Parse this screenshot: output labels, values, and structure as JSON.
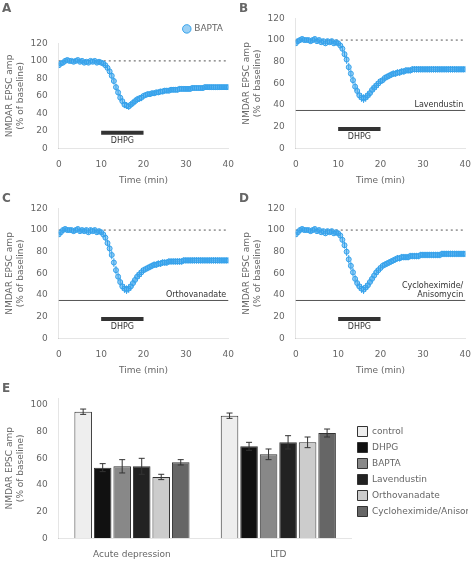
{
  "chart_data": [
    {
      "type": "scatter",
      "title": "A",
      "xlabel": "Time (min)",
      "ylabel": "NMDAR EPSC amp\n(% of baseline)",
      "x": [
        0,
        0.5,
        1,
        1.5,
        2,
        2.5,
        3,
        3.5,
        4,
        4.5,
        5,
        5.5,
        6,
        6.5,
        7,
        7.5,
        8,
        8.5,
        9,
        9.5,
        10,
        10.5,
        11,
        11.5,
        12,
        12.5,
        13,
        13.5,
        14,
        14.5,
        15,
        15.5,
        16,
        16.5,
        17,
        17.5,
        18,
        18.5,
        19,
        19.5,
        20,
        20.5,
        21,
        21.5,
        22,
        22.5,
        23,
        23.5,
        24,
        24.5,
        25,
        25.5,
        26,
        26.5,
        27,
        27.5,
        28,
        28.5,
        29,
        29.5,
        30,
        30.5,
        31,
        31.5,
        32,
        32.5,
        33,
        33.5,
        34,
        34.5,
        35,
        35.5,
        36,
        36.5,
        37,
        37.5,
        38,
        38.5,
        39,
        39.5,
        40
      ],
      "series": [
        {
          "name": "BAPTA",
          "marker": "circle",
          "values": [
            95,
            97,
            98,
            100,
            101,
            100,
            100,
            99,
            100,
            101,
            99,
            100,
            98,
            99,
            98,
            100,
            99,
            100,
            98,
            99,
            98,
            97,
            95,
            92,
            88,
            83,
            77,
            70,
            64,
            58,
            54,
            50,
            49,
            48,
            50,
            52,
            54,
            56,
            57,
            58,
            60,
            61,
            62,
            62,
            63,
            63,
            64,
            64,
            65,
            65,
            66,
            66,
            66,
            67,
            67,
            67,
            67,
            68,
            68,
            68,
            68,
            68,
            68,
            69,
            69,
            69,
            69,
            69,
            69,
            70,
            70,
            70,
            70,
            70,
            70,
            70,
            70,
            70,
            70,
            70,
            70
          ],
          "errors": [
            2,
            2,
            2,
            2,
            2,
            2,
            2,
            2,
            2,
            2,
            2,
            2,
            2,
            2,
            2,
            2,
            2,
            2,
            2,
            2,
            2,
            3,
            3,
            3,
            4,
            4,
            4,
            4,
            4,
            4,
            4,
            4,
            4,
            4,
            4,
            4,
            4,
            4,
            4,
            4,
            3,
            3,
            3,
            3,
            3,
            3,
            3,
            3,
            3,
            3,
            3,
            3,
            3,
            3,
            3,
            3,
            3,
            3,
            3,
            3,
            3,
            3,
            3,
            3,
            3,
            3,
            3,
            3,
            3,
            3,
            3,
            3,
            3,
            3,
            3,
            3,
            3,
            3,
            3,
            3,
            3
          ]
        }
      ],
      "legend": "upper right",
      "annotations": [
        {
          "type": "hline",
          "y": 100,
          "line_style": "dotted"
        },
        {
          "type": "span",
          "x": [
            10,
            20
          ],
          "y": 18,
          "text": "DHPG"
        }
      ],
      "xlim": [
        0,
        40
      ],
      "xticks": [
        0,
        10,
        20,
        30,
        40
      ],
      "ylim": [
        0,
        120
      ],
      "yticks": [
        0,
        20,
        40,
        60,
        80,
        100,
        120
      ],
      "grid": false
    },
    {
      "type": "scatter",
      "title": "B",
      "xlabel": "Time (min)",
      "ylabel": "NMDAR EPSC amp\n(% of baseline)",
      "x": [
        0,
        0.5,
        1,
        1.5,
        2,
        2.5,
        3,
        3.5,
        4,
        4.5,
        5,
        5.5,
        6,
        6.5,
        7,
        7.5,
        8,
        8.5,
        9,
        9.5,
        10,
        10.5,
        11,
        11.5,
        12,
        12.5,
        13,
        13.5,
        14,
        14.5,
        15,
        15.5,
        16,
        16.5,
        17,
        17.5,
        18,
        18.5,
        19,
        19.5,
        20,
        20.5,
        21,
        21.5,
        22,
        22.5,
        23,
        23.5,
        24,
        24.5,
        25,
        25.5,
        26,
        26.5,
        27,
        27.5,
        28,
        28.5,
        29,
        29.5,
        30,
        30.5,
        31,
        31.5,
        32,
        32.5,
        33,
        33.5,
        34,
        34.5,
        35,
        35.5,
        36,
        36.5,
        37,
        37.5,
        38,
        38.5,
        39,
        39.5,
        40
      ],
      "series": [
        {
          "marker": "circle",
          "values": [
            97,
            99,
            100,
            101,
            100,
            100,
            100,
            99,
            100,
            101,
            99,
            100,
            98,
            99,
            97,
            99,
            98,
            99,
            97,
            98,
            97,
            95,
            92,
            87,
            82,
            75,
            69,
            63,
            57,
            53,
            49,
            47,
            46,
            47,
            49,
            51,
            54,
            56,
            58,
            60,
            62,
            63,
            65,
            66,
            67,
            68,
            69,
            69,
            70,
            70,
            71,
            71,
            72,
            72,
            72,
            73,
            73,
            73,
            73,
            73,
            73,
            73,
            73,
            73,
            73,
            73,
            73,
            73,
            73,
            73,
            73,
            73,
            73,
            73,
            73,
            73,
            73,
            73,
            73,
            73,
            73
          ],
          "errors": [
            2,
            2,
            2,
            2,
            2,
            2,
            2,
            2,
            2,
            2,
            2,
            2,
            2,
            2,
            2,
            2,
            2,
            2,
            2,
            2,
            2,
            3,
            3,
            3,
            4,
            4,
            4,
            4,
            4,
            4,
            4,
            4,
            4,
            4,
            4,
            4,
            4,
            4,
            4,
            4,
            3,
            3,
            3,
            3,
            3,
            3,
            3,
            3,
            3,
            3,
            3,
            3,
            3,
            3,
            3,
            3,
            3,
            3,
            3,
            3,
            3,
            3,
            3,
            3,
            3,
            3,
            3,
            3,
            3,
            3,
            3,
            3,
            3,
            3,
            3,
            3,
            3,
            3,
            3,
            3,
            3
          ]
        }
      ],
      "annotations": [
        {
          "type": "hline",
          "y": 100,
          "line_style": "dotted"
        },
        {
          "type": "hline",
          "y": 35,
          "line_style": "solid",
          "text": "Lavendustin"
        },
        {
          "type": "span",
          "x": [
            10,
            20
          ],
          "y": 18,
          "text": "DHPG"
        }
      ],
      "xlim": [
        0,
        40
      ],
      "xticks": [
        0,
        10,
        20,
        30,
        40
      ],
      "ylim": [
        0,
        120
      ],
      "yticks": [
        0,
        20,
        40,
        60,
        80,
        100,
        120
      ],
      "grid": false
    },
    {
      "type": "scatter",
      "title": "C",
      "xlabel": "Time (min)",
      "ylabel": "NMDAR EPSC amp\n(% of baseline)",
      "x": [
        0,
        0.5,
        1,
        1.5,
        2,
        2.5,
        3,
        3.5,
        4,
        4.5,
        5,
        5.5,
        6,
        6.5,
        7,
        7.5,
        8,
        8.5,
        9,
        9.5,
        10,
        10.5,
        11,
        11.5,
        12,
        12.5,
        13,
        13.5,
        14,
        14.5,
        15,
        15.5,
        16,
        16.5,
        17,
        17.5,
        18,
        18.5,
        19,
        19.5,
        20,
        20.5,
        21,
        21.5,
        22,
        22.5,
        23,
        23.5,
        24,
        24.5,
        25,
        25.5,
        26,
        26.5,
        27,
        27.5,
        28,
        28.5,
        29,
        29.5,
        30,
        30.5,
        31,
        31.5,
        32,
        32.5,
        33,
        33.5,
        34,
        34.5,
        35,
        35.5,
        36,
        36.5,
        37,
        37.5,
        38,
        38.5,
        39,
        39.5,
        40
      ],
      "series": [
        {
          "marker": "circle",
          "values": [
            96,
            98,
            100,
            101,
            100,
            100,
            100,
            99,
            100,
            101,
            99,
            100,
            99,
            100,
            98,
            100,
            99,
            100,
            98,
            99,
            98,
            96,
            93,
            88,
            83,
            77,
            70,
            63,
            57,
            52,
            48,
            46,
            45,
            46,
            48,
            51,
            54,
            57,
            59,
            61,
            63,
            64,
            65,
            66,
            67,
            68,
            68,
            69,
            69,
            70,
            70,
            70,
            71,
            71,
            71,
            71,
            71,
            71,
            71,
            72,
            72,
            72,
            72,
            72,
            72,
            72,
            72,
            72,
            72,
            72,
            72,
            72,
            72,
            72,
            72,
            72,
            72,
            72,
            72,
            72,
            72
          ],
          "errors": [
            2,
            2,
            2,
            2,
            2,
            2,
            2,
            2,
            2,
            2,
            2,
            2,
            2,
            2,
            2,
            2,
            2,
            2,
            2,
            2,
            2,
            3,
            3,
            3,
            4,
            4,
            4,
            4,
            4,
            4,
            4,
            4,
            4,
            4,
            4,
            4,
            4,
            4,
            4,
            4,
            3,
            3,
            3,
            3,
            3,
            3,
            3,
            3,
            3,
            3,
            3,
            3,
            3,
            3,
            3,
            3,
            3,
            3,
            3,
            3,
            3,
            3,
            3,
            3,
            3,
            3,
            3,
            3,
            3,
            3,
            3,
            3,
            3,
            3,
            3,
            3,
            3,
            3,
            3,
            3,
            3
          ]
        }
      ],
      "annotations": [
        {
          "type": "hline",
          "y": 100,
          "line_style": "dotted"
        },
        {
          "type": "hline",
          "y": 35,
          "line_style": "solid",
          "text": "Orthovanadate"
        },
        {
          "type": "span",
          "x": [
            10,
            20
          ],
          "y": 18,
          "text": "DHPG"
        }
      ],
      "xlim": [
        0,
        40
      ],
      "xticks": [
        0,
        10,
        20,
        30,
        40
      ],
      "ylim": [
        0,
        120
      ],
      "yticks": [
        0,
        20,
        40,
        60,
        80,
        100,
        120
      ],
      "grid": false
    },
    {
      "type": "scatter",
      "title": "D",
      "xlabel": "Time (min)",
      "ylabel": "NMDAR EPSC amp\n(% of baseline)",
      "x": [
        0,
        0.5,
        1,
        1.5,
        2,
        2.5,
        3,
        3.5,
        4,
        4.5,
        5,
        5.5,
        6,
        6.5,
        7,
        7.5,
        8,
        8.5,
        9,
        9.5,
        10,
        10.5,
        11,
        11.5,
        12,
        12.5,
        13,
        13.5,
        14,
        14.5,
        15,
        15.5,
        16,
        16.5,
        17,
        17.5,
        18,
        18.5,
        19,
        19.5,
        20,
        20.5,
        21,
        21.5,
        22,
        22.5,
        23,
        23.5,
        24,
        24.5,
        25,
        25.5,
        26,
        26.5,
        27,
        27.5,
        28,
        28.5,
        29,
        29.5,
        30,
        30.5,
        31,
        31.5,
        32,
        32.5,
        33,
        33.5,
        34,
        34.5,
        35,
        35.5,
        36,
        36.5,
        37,
        37.5,
        38,
        38.5,
        39,
        39.5,
        40
      ],
      "series": [
        {
          "marker": "circle",
          "values": [
            96,
            98,
            100,
            101,
            100,
            100,
            100,
            99,
            100,
            101,
            99,
            100,
            98,
            99,
            97,
            99,
            98,
            99,
            97,
            98,
            97,
            95,
            91,
            86,
            80,
            73,
            67,
            61,
            55,
            51,
            48,
            46,
            45,
            47,
            49,
            52,
            55,
            58,
            61,
            63,
            65,
            67,
            68,
            69,
            70,
            71,
            72,
            73,
            74,
            74,
            75,
            75,
            75,
            75,
            76,
            76,
            76,
            76,
            76,
            77,
            77,
            77,
            77,
            77,
            77,
            77,
            77,
            77,
            77,
            78,
            78,
            78,
            78,
            78,
            78,
            78,
            78,
            78,
            78,
            78,
            78
          ],
          "errors": [
            2,
            2,
            2,
            2,
            2,
            2,
            2,
            2,
            2,
            2,
            2,
            2,
            2,
            2,
            2,
            2,
            2,
            2,
            2,
            2,
            2,
            3,
            3,
            3,
            4,
            4,
            4,
            4,
            4,
            4,
            4,
            4,
            4,
            4,
            4,
            4,
            4,
            4,
            4,
            4,
            3,
            3,
            3,
            3,
            3,
            3,
            3,
            3,
            3,
            3,
            3,
            3,
            3,
            3,
            3,
            3,
            3,
            3,
            3,
            3,
            3,
            3,
            3,
            3,
            3,
            3,
            3,
            3,
            3,
            3,
            3,
            3,
            3,
            3,
            3,
            3,
            3,
            3,
            3,
            3,
            3
          ]
        }
      ],
      "annotations": [
        {
          "type": "hline",
          "y": 100,
          "line_style": "dotted"
        },
        {
          "type": "hline",
          "y": 35,
          "line_style": "solid",
          "text": "Cycloheximide/\nAnisomycin"
        },
        {
          "type": "span",
          "x": [
            10,
            20
          ],
          "y": 18,
          "text": "DHPG"
        }
      ],
      "xlim": [
        0,
        40
      ],
      "xticks": [
        0,
        10,
        20,
        30,
        40
      ],
      "ylim": [
        0,
        120
      ],
      "yticks": [
        0,
        20,
        40,
        60,
        80,
        100,
        120
      ],
      "grid": false
    },
    {
      "type": "bar",
      "title": "E",
      "ylabel": "NMDAR EPSC amp\n(% of baseline)",
      "categories": [
        "Acute depression",
        "LTD"
      ],
      "series": [
        {
          "name": "control",
          "color": "#eeeeee",
          "values": [
            95,
            92
          ],
          "errors": [
            2,
            2
          ]
        },
        {
          "name": "DHPG",
          "color": "#111111",
          "values": [
            53,
            69
          ],
          "errors": [
            3,
            3
          ]
        },
        {
          "name": "BAPTA",
          "color": "#888888",
          "values": [
            54,
            63
          ],
          "errors": [
            5,
            4
          ]
        },
        {
          "name": "Lavendustin",
          "color": "#222222",
          "values": [
            54,
            72
          ],
          "errors": [
            6,
            5
          ]
        },
        {
          "name": "Orthovanadate",
          "color": "#cccccc",
          "values": [
            46,
            72
          ],
          "errors": [
            2,
            4
          ]
        },
        {
          "name": "Cycloheximide/Anisomycin",
          "color": "#666666",
          "values": [
            57,
            79
          ],
          "errors": [
            2,
            3
          ]
        }
      ],
      "legend": "right",
      "ylim": [
        0,
        105
      ],
      "yticks": [
        0,
        20,
        40,
        60,
        80,
        100
      ],
      "grid": false
    }
  ]
}
